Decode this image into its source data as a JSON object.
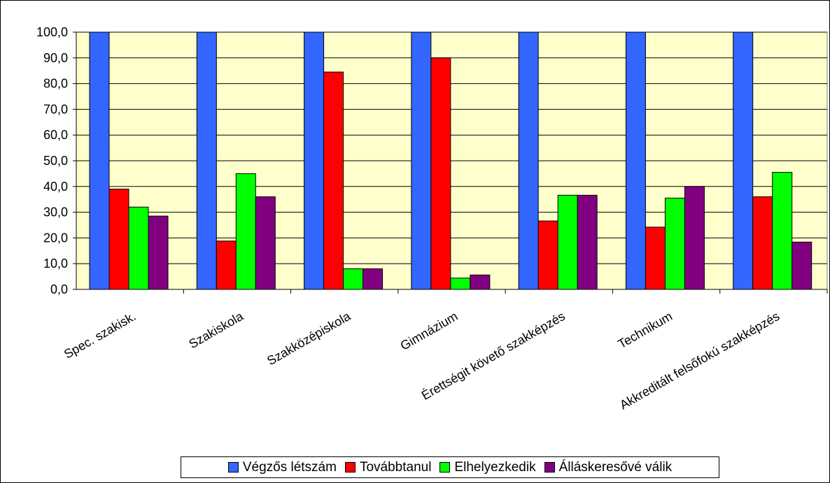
{
  "chart_data": {
    "type": "bar",
    "categories": [
      "Spec. szakisk.",
      "Szakiskola",
      "Szakközépiskola",
      "Gimnázium",
      "Érettségit követő szakképzés",
      "Technikum",
      "Akkreditált felsőfokú szakképzés"
    ],
    "series": [
      {
        "name": "Végzős létszám",
        "color": "#3366FF",
        "values": [
          100,
          100,
          100,
          100,
          100,
          100,
          100
        ]
      },
      {
        "name": "Továbbtanul",
        "color": "#FF0000",
        "values": [
          39.0,
          18.8,
          84.5,
          90.0,
          26.6,
          24.2,
          36.0
        ]
      },
      {
        "name": "Elhelyezkedik",
        "color": "#00FF00",
        "values": [
          32.0,
          45.0,
          8.0,
          4.4,
          36.6,
          35.5,
          45.5
        ]
      },
      {
        "name": "Álláskeresővé válik",
        "color": "#800080",
        "values": [
          28.5,
          36.0,
          8.0,
          5.6,
          36.6,
          40.0,
          18.4
        ]
      }
    ],
    "y_ticks": [
      "0,0",
      "10,0",
      "20,0",
      "30,0",
      "40,0",
      "50,0",
      "60,0",
      "70,0",
      "80,0",
      "90,0",
      "100,0"
    ],
    "ylim": [
      0,
      100
    ],
    "grid": true,
    "plot_background": "#FFFFCC",
    "legend_position": "bottom"
  }
}
